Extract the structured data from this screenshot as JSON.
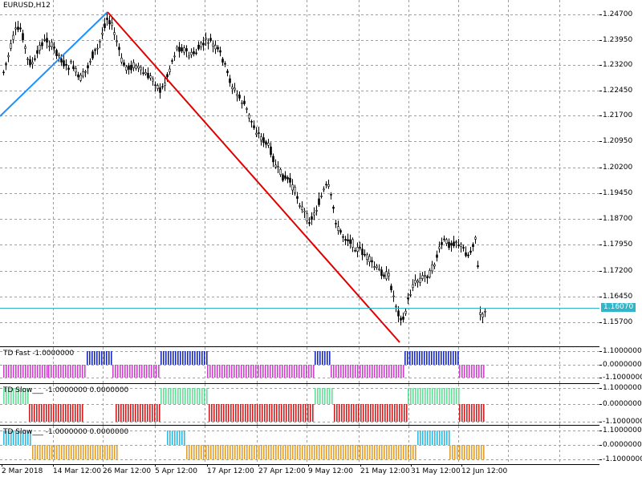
{
  "window": {
    "title": "EURUSD,H12"
  },
  "main_chart": {
    "price_axis": [
      "1.24700",
      "1.23950",
      "1.23200",
      "1.22450",
      "1.21700",
      "1.20950",
      "1.20200",
      "1.19450",
      "1.18700",
      "1.17950",
      "1.17200",
      "1.16450",
      "1.15700"
    ],
    "current_price": "1.16070",
    "colors": {
      "up_zigzag": "#1e90ff",
      "down_zigzag": "#e00000",
      "candles": "#000000",
      "price_line": "#33b5c9",
      "grid": "#a0a0a0"
    }
  },
  "indicators": [
    {
      "name": "TD Fast",
      "values": "-1.0000000",
      "axis": [
        "1.1000000",
        "0.0000000",
        "-1.1000000"
      ],
      "colors": {
        "positive": "#1a2bb8",
        "negative": "#cc44cc"
      }
    },
    {
      "name": "TD Slow___",
      "values": "-1.0000000 0.0000000",
      "axis": [
        "1.1000000",
        "0.0000000",
        "-1.1000000"
      ],
      "colors": {
        "positive": "#66dd99",
        "negative": "#cc2222"
      }
    },
    {
      "name": "TD Slow___",
      "values": "-1.0000000 0.0000000",
      "axis": [
        "1.1000000",
        "0.0000000",
        "-1.1000000"
      ],
      "colors": {
        "positive": "#33bbdd",
        "negative": "#e0a030"
      }
    }
  ],
  "time_axis": [
    "2 Mar 2018",
    "14 Mar 12:00",
    "26 Mar 12:00",
    "5 Apr 12:00",
    "17 Apr 12:00",
    "27 Apr 12:00",
    "9 May 12:00",
    "21 May 12:00",
    "31 May 12:00",
    "12 Jun 12:00"
  ]
}
